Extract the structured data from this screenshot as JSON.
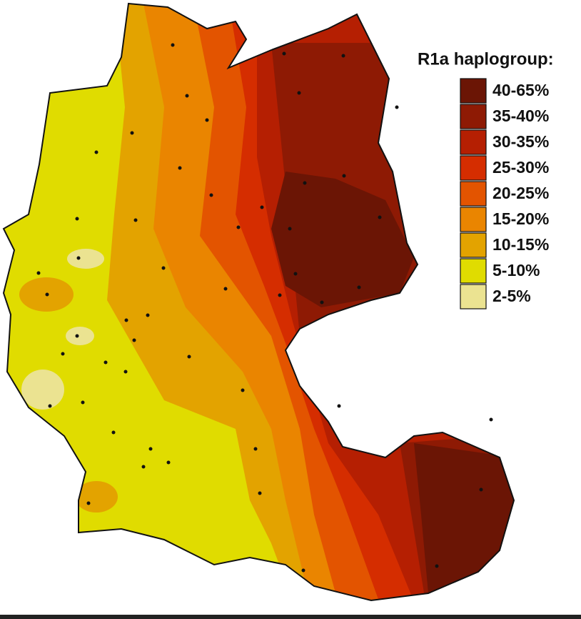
{
  "legend": {
    "title": "R1a haplogroup:",
    "items": [
      {
        "label": "40-65%",
        "color": "#6b1505"
      },
      {
        "label": "35-40%",
        "color": "#8e1a04"
      },
      {
        "label": "30-35%",
        "color": "#b51f02"
      },
      {
        "label": "25-30%",
        "color": "#d52d00"
      },
      {
        "label": "20-25%",
        "color": "#e35400"
      },
      {
        "label": "15-20%",
        "color": "#ea8500"
      },
      {
        "label": "10-15%",
        "color": "#e3a300"
      },
      {
        "label": "5-10%",
        "color": "#e0dc00"
      },
      {
        "label": "2-5%",
        "color": "#ebe391"
      }
    ]
  }
}
